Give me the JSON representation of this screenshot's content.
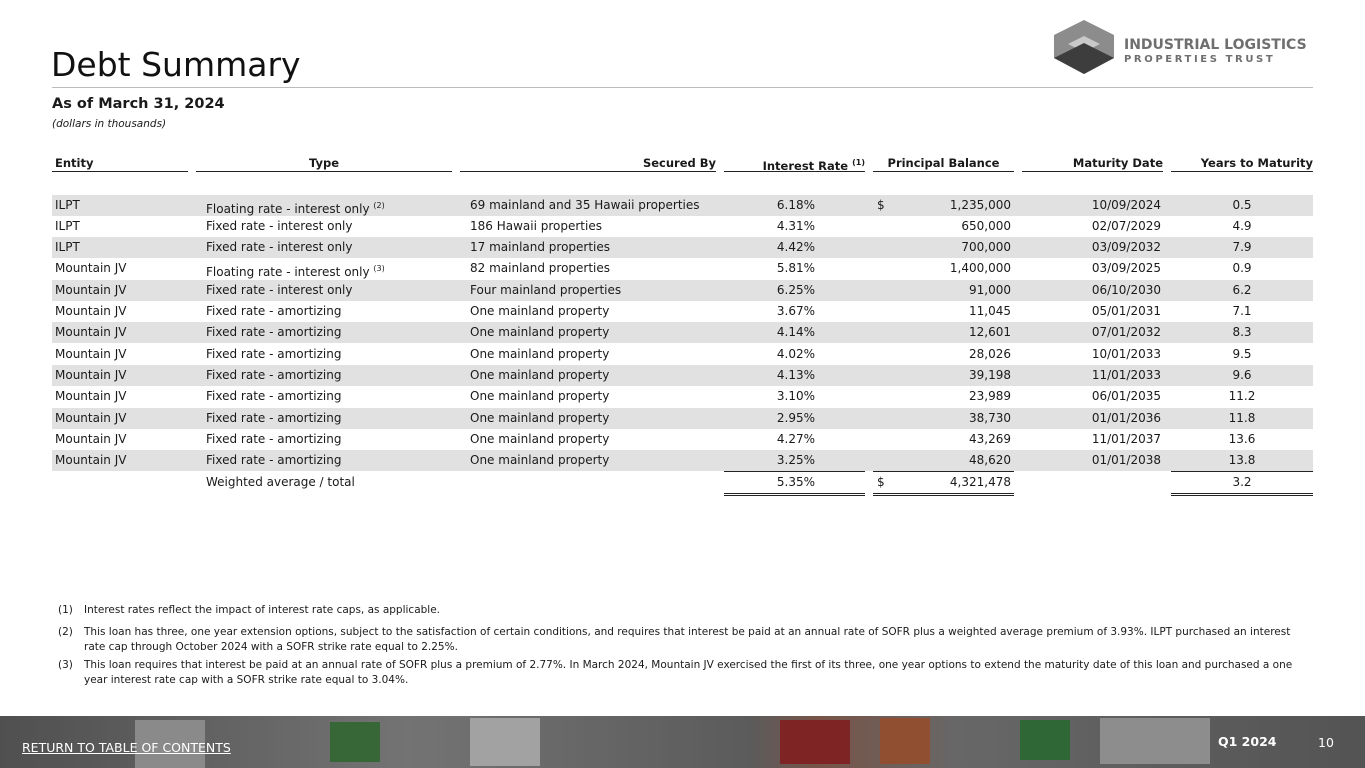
{
  "logo": {
    "line1": "INDUSTRIAL LOGISTICS",
    "line2": "PROPERTIES TRUST"
  },
  "header": {
    "title": "Debt Summary",
    "subtitle": "As of March 31, 2024",
    "note": "(dollars in thousands)"
  },
  "table": {
    "columns": {
      "entity": "Entity",
      "type": "Type",
      "secured_by": "Secured By",
      "interest_rate": "Interest Rate",
      "interest_rate_note": "(1)",
      "principal_balance": "Principal Balance",
      "maturity_date": "Maturity Date",
      "years_to_maturity": "Years to Maturity"
    },
    "rows": [
      {
        "entity": "ILPT",
        "type": "Floating rate - interest only",
        "type_note": "(2)",
        "secured_by": "69 mainland and 35 Hawaii properties",
        "interest_rate": "6.18%",
        "currency": "$",
        "principal_balance": "1,235,000",
        "maturity_date": "10/09/2024",
        "years_to_maturity": "0.5"
      },
      {
        "entity": "ILPT",
        "type": "Fixed rate - interest only",
        "secured_by": "186 Hawaii properties",
        "interest_rate": "4.31%",
        "principal_balance": "650,000",
        "maturity_date": "02/07/2029",
        "years_to_maturity": "4.9"
      },
      {
        "entity": "ILPT",
        "type": "Fixed rate - interest only",
        "secured_by": "17 mainland properties",
        "interest_rate": "4.42%",
        "principal_balance": "700,000",
        "maturity_date": "03/09/2032",
        "years_to_maturity": "7.9"
      },
      {
        "entity": "Mountain JV",
        "type": "Floating rate - interest only",
        "type_note": "(3)",
        "secured_by": "82 mainland properties",
        "interest_rate": "5.81%",
        "principal_balance": "1,400,000",
        "maturity_date": "03/09/2025",
        "years_to_maturity": "0.9"
      },
      {
        "entity": "Mountain JV",
        "type": "Fixed rate - interest only",
        "secured_by": "Four mainland properties",
        "interest_rate": "6.25%",
        "principal_balance": "91,000",
        "maturity_date": "06/10/2030",
        "years_to_maturity": "6.2"
      },
      {
        "entity": "Mountain JV",
        "type": "Fixed rate - amortizing",
        "secured_by": "One mainland property",
        "interest_rate": "3.67%",
        "principal_balance": "11,045",
        "maturity_date": "05/01/2031",
        "years_to_maturity": "7.1"
      },
      {
        "entity": "Mountain JV",
        "type": "Fixed rate - amortizing",
        "secured_by": "One mainland property",
        "interest_rate": "4.14%",
        "principal_balance": "12,601",
        "maturity_date": "07/01/2032",
        "years_to_maturity": "8.3"
      },
      {
        "entity": "Mountain JV",
        "type": "Fixed rate - amortizing",
        "secured_by": "One mainland property",
        "interest_rate": "4.02%",
        "principal_balance": "28,026",
        "maturity_date": "10/01/2033",
        "years_to_maturity": "9.5"
      },
      {
        "entity": "Mountain JV",
        "type": "Fixed rate - amortizing",
        "secured_by": "One mainland property",
        "interest_rate": "4.13%",
        "principal_balance": "39,198",
        "maturity_date": "11/01/2033",
        "years_to_maturity": "9.6"
      },
      {
        "entity": "Mountain JV",
        "type": "Fixed rate - amortizing",
        "secured_by": "One mainland property",
        "interest_rate": "3.10%",
        "principal_balance": "23,989",
        "maturity_date": "06/01/2035",
        "years_to_maturity": "11.2"
      },
      {
        "entity": "Mountain JV",
        "type": "Fixed rate - amortizing",
        "secured_by": "One mainland property",
        "interest_rate": "2.95%",
        "principal_balance": "38,730",
        "maturity_date": "01/01/2036",
        "years_to_maturity": "11.8"
      },
      {
        "entity": "Mountain JV",
        "type": "Fixed rate - amortizing",
        "secured_by": "One mainland property",
        "interest_rate": "4.27%",
        "principal_balance": "43,269",
        "maturity_date": "11/01/2037",
        "years_to_maturity": "13.6"
      },
      {
        "entity": "Mountain JV",
        "type": "Fixed rate - amortizing",
        "secured_by": "One mainland property",
        "interest_rate": "3.25%",
        "principal_balance": "48,620",
        "maturity_date": "01/01/2038",
        "years_to_maturity": "13.8"
      }
    ],
    "total": {
      "type": "Weighted average / total",
      "interest_rate": "5.35%",
      "currency": "$",
      "principal_balance": "4,321,478",
      "years_to_maturity": "3.2"
    }
  },
  "footnotes": [
    {
      "marker": "(1)",
      "text": "Interest rates reflect the impact of interest rate caps, as applicable."
    },
    {
      "marker": "(2)",
      "text": "This loan has three, one year extension options, subject to the satisfaction of certain conditions, and requires that interest be paid at an annual rate of SOFR plus a weighted average premium of 3.93%. ILPT purchased an interest rate cap through October 2024 with a SOFR strike rate equal to 2.25%."
    },
    {
      "marker": "(3)",
      "text": "This loan requires that interest be paid at an annual rate of SOFR plus a premium of 2.77%. In March 2024, Mountain JV exercised the first of its three, one year options to extend the maturity date of this loan and purchased a one year interest rate cap with a SOFR strike rate equal to 3.04%."
    }
  ],
  "footer": {
    "link": "RETURN TO TABLE OF CONTENTS",
    "period": "Q1 2024",
    "page": "10"
  }
}
